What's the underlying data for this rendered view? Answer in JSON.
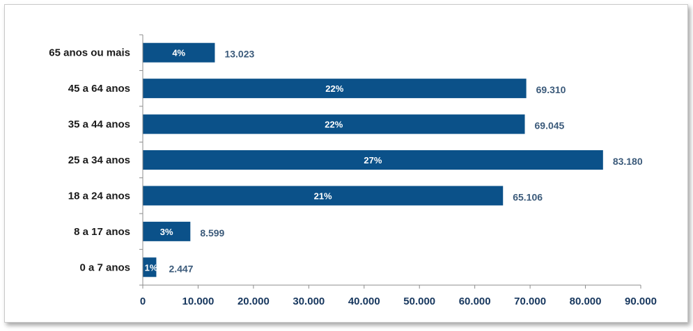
{
  "chart_data": {
    "type": "bar",
    "orientation": "horizontal",
    "categories": [
      "65 anos ou mais",
      "45 a 64 anos",
      "35 a 44 anos",
      "25 a 34 anos",
      "18 a 24 anos",
      "8 a 17 anos",
      "0 a 7 anos"
    ],
    "values": [
      13023,
      69310,
      69045,
      83180,
      65106,
      8599,
      2447
    ],
    "value_labels": [
      "13.023",
      "69.310",
      "69.045",
      "83.180",
      "65.106",
      "8.599",
      "2.447"
    ],
    "percent_labels": [
      "4%",
      "22%",
      "22%",
      "27%",
      "21%",
      "3%",
      "1%"
    ],
    "xlim": [
      0,
      90000
    ],
    "x_ticks": [
      0,
      10000,
      20000,
      30000,
      40000,
      50000,
      60000,
      70000,
      80000,
      90000
    ],
    "x_tick_labels": [
      "0",
      "10.000",
      "20.000",
      "30.000",
      "40.000",
      "50.000",
      "60.000",
      "70.000",
      "80.000",
      "90.000"
    ],
    "title": "",
    "xlabel": "",
    "ylabel": "",
    "grid": false,
    "bar_color": "#0b5189"
  }
}
